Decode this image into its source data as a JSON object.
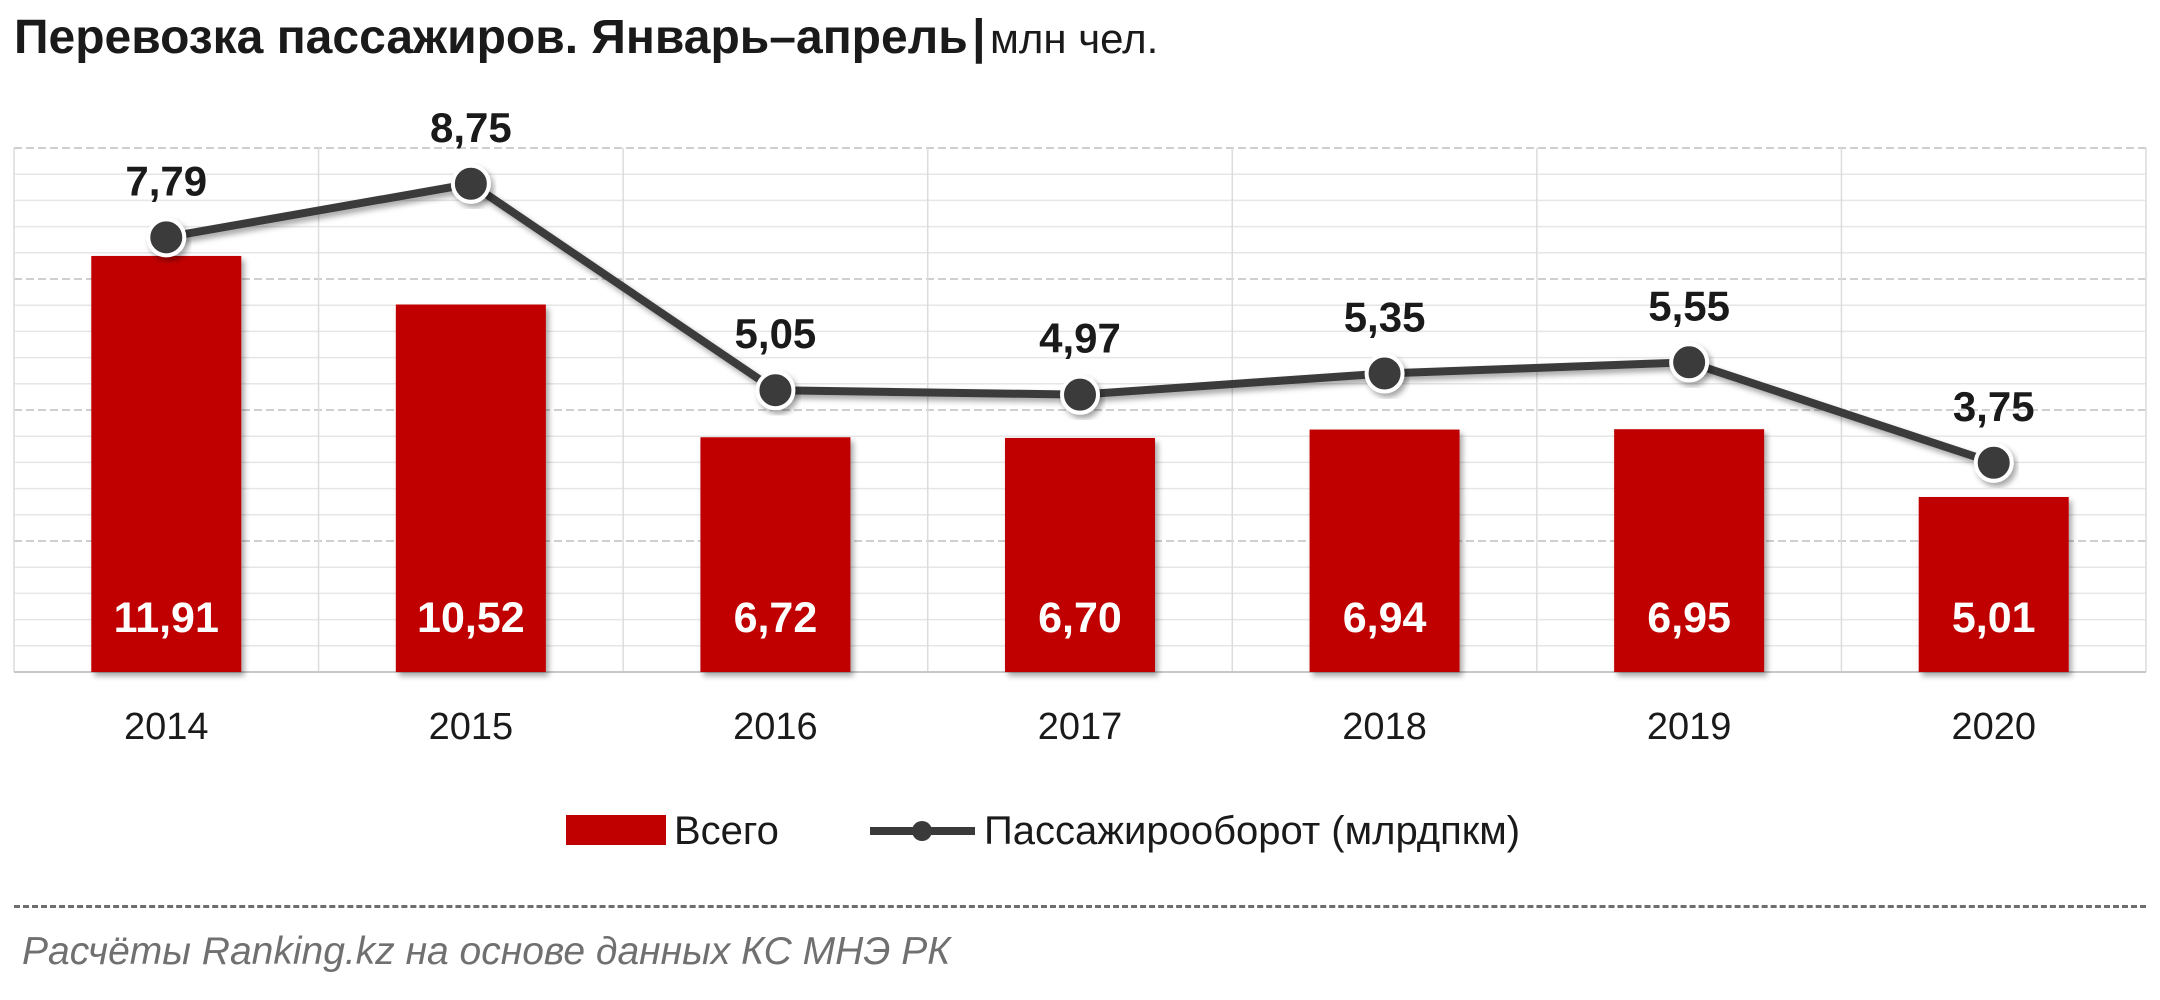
{
  "header": {
    "title": "Перевозка пассажиров. Январь–апрель",
    "separator": "|",
    "unit": "млн чел."
  },
  "footer": {
    "source": "Расчёты Ranking.kz на основе данных КС МНЭ РК"
  },
  "colors": {
    "bar": "#c00000",
    "line": "#3a3a3a",
    "marker": "#3a3a3a",
    "grid": "#d9d9d9",
    "text": "#1a1a1a"
  },
  "chart_data": {
    "type": "bar",
    "categories": [
      "2014",
      "2015",
      "2016",
      "2017",
      "2018",
      "2019",
      "2020"
    ],
    "series": [
      {
        "name": "Всего",
        "type": "bar",
        "values": [
          11.91,
          10.52,
          6.72,
          6.7,
          6.94,
          6.95,
          5.01
        ],
        "labels": [
          "11,91",
          "10,52",
          "6,72",
          "6,70",
          "6,94",
          "6,95",
          "5,01"
        ]
      },
      {
        "name": "Пассажирооборот (млрдпкм)",
        "type": "line",
        "values": [
          7.79,
          8.75,
          5.05,
          4.97,
          5.35,
          5.55,
          3.75
        ],
        "labels": [
          "7,79",
          "8,75",
          "5,05",
          "4,97",
          "5,35",
          "5,55",
          "3,75"
        ]
      }
    ],
    "legend_position": "bottom",
    "grid": true,
    "y_axis_labels": false
  }
}
